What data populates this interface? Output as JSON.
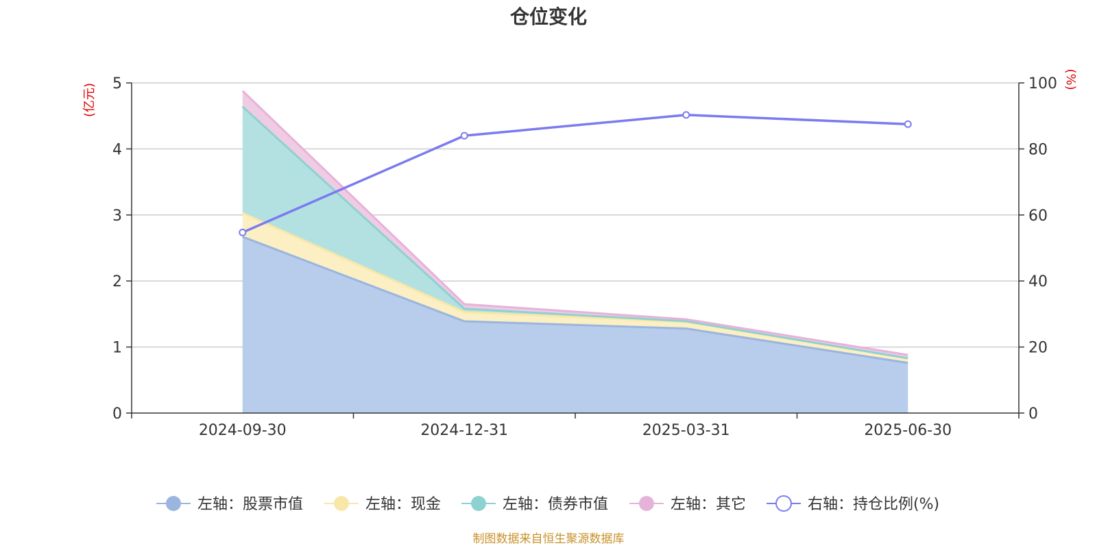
{
  "chart_data": {
    "type": "area",
    "title": "仓位变化",
    "categories": [
      "2024-09-30",
      "2024-12-31",
      "2025-03-31",
      "2025-06-30"
    ],
    "left_axis": {
      "unit": "(亿元)",
      "ylim": [
        0,
        5
      ],
      "ticks": [
        "0",
        "1",
        "2",
        "3",
        "4",
        "5"
      ]
    },
    "right_axis": {
      "unit": "(%)",
      "ylim": [
        0,
        100
      ],
      "ticks": [
        "0",
        "20",
        "40",
        "60",
        "80",
        "100"
      ]
    },
    "series": [
      {
        "name": "左轴：股票市值",
        "axis": "left",
        "stack": true,
        "values": [
          2.67,
          1.39,
          1.28,
          0.76
        ],
        "line_color": "#9ab5de",
        "fill_color": "#b8cceb"
      },
      {
        "name": "左轴：现金",
        "axis": "left",
        "stack": true,
        "values": [
          0.36,
          0.14,
          0.1,
          0.07
        ],
        "line_color": "#f7e7a8",
        "fill_color": "#fbefc3"
      },
      {
        "name": "左轴：债券市值",
        "axis": "left",
        "stack": true,
        "values": [
          1.61,
          0.05,
          0.01,
          0.0
        ],
        "line_color": "#8ed1d1",
        "fill_color": "#b3e1e1"
      },
      {
        "name": "左轴：其它",
        "axis": "left",
        "stack": true,
        "values": [
          0.24,
          0.07,
          0.03,
          0.05
        ],
        "line_color": "#e6b3d8",
        "fill_color": "#efcbe4"
      },
      {
        "name": "右轴：持仓比例(%)",
        "axis": "right",
        "type": "line",
        "values": [
          54.7,
          84.0,
          90.3,
          87.5
        ],
        "line_color": "#7b7bef"
      }
    ],
    "grid": true,
    "legend_position": "bottom"
  },
  "source_text": "制图数据来自恒生聚源数据库"
}
